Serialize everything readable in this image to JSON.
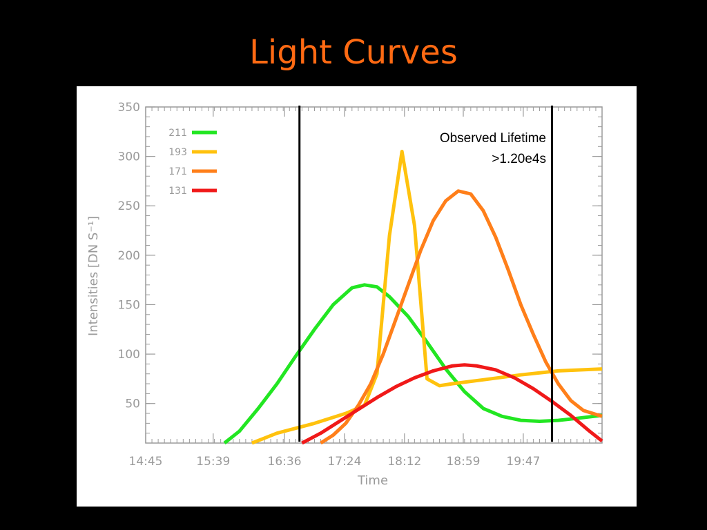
{
  "slide": {
    "title": "Light Curves",
    "title_color": "#ff6a13"
  },
  "chart_data": {
    "type": "line",
    "title": "",
    "xlabel": "Time",
    "ylabel": "Intensities [DN S⁻¹]",
    "xlim": [
      "14:45",
      "20:50"
    ],
    "ylim": [
      10,
      350
    ],
    "x_ticks": [
      "14:45",
      "15:39",
      "16:36",
      "17:24",
      "18:12",
      "18:59",
      "19:47"
    ],
    "y_ticks": [
      50,
      100,
      150,
      200,
      250,
      300,
      350
    ],
    "legend_placement": "top-left",
    "annotation": [
      "Observed  Lifetime",
      ">1.20e4s"
    ],
    "marker_times": [
      "16:48",
      "20:10"
    ],
    "marker_color": "#000000",
    "series": [
      {
        "name": "211",
        "color": "#22e622",
        "x": [
          "15:48",
          "16:00",
          "16:15",
          "16:30",
          "16:45",
          "17:00",
          "17:15",
          "17:30",
          "17:40",
          "17:50",
          "18:00",
          "18:15",
          "18:30",
          "18:45",
          "19:00",
          "19:15",
          "19:30",
          "19:45",
          "20:00",
          "20:15",
          "20:30",
          "20:50"
        ],
        "values": [
          10,
          22,
          45,
          70,
          98,
          125,
          150,
          167,
          170,
          168,
          158,
          138,
          112,
          85,
          62,
          45,
          37,
          33,
          32,
          33,
          35,
          38
        ]
      },
      {
        "name": "193",
        "color": "#ffc20e",
        "x": [
          "16:10",
          "16:30",
          "17:00",
          "17:25",
          "17:40",
          "17:50",
          "18:00",
          "18:10",
          "18:20",
          "18:30",
          "18:40",
          "18:50",
          "19:15",
          "19:45",
          "20:15",
          "20:50"
        ],
        "values": [
          10,
          20,
          30,
          40,
          48,
          80,
          220,
          305,
          230,
          75,
          68,
          70,
          74,
          79,
          83,
          85
        ]
      },
      {
        "name": "171",
        "color": "#ff7f1a",
        "x": [
          "17:05",
          "17:15",
          "17:25",
          "17:35",
          "17:45",
          "17:55",
          "18:05",
          "18:15",
          "18:25",
          "18:35",
          "18:45",
          "18:55",
          "19:05",
          "19:15",
          "19:25",
          "19:35",
          "19:45",
          "19:55",
          "20:05",
          "20:15",
          "20:25",
          "20:35",
          "20:50"
        ],
        "values": [
          10,
          18,
          30,
          48,
          70,
          100,
          135,
          170,
          205,
          235,
          255,
          265,
          262,
          245,
          218,
          185,
          150,
          120,
          92,
          70,
          53,
          43,
          37
        ]
      },
      {
        "name": "131",
        "color": "#f01919",
        "x": [
          "16:50",
          "17:05",
          "17:20",
          "17:35",
          "17:50",
          "18:05",
          "18:20",
          "18:35",
          "18:50",
          "19:00",
          "19:10",
          "19:25",
          "19:40",
          "19:55",
          "20:10",
          "20:25",
          "20:40",
          "20:50"
        ],
        "values": [
          10,
          20,
          32,
          44,
          56,
          67,
          76,
          83,
          88,
          89,
          88,
          84,
          76,
          65,
          52,
          38,
          22,
          12
        ]
      }
    ]
  }
}
